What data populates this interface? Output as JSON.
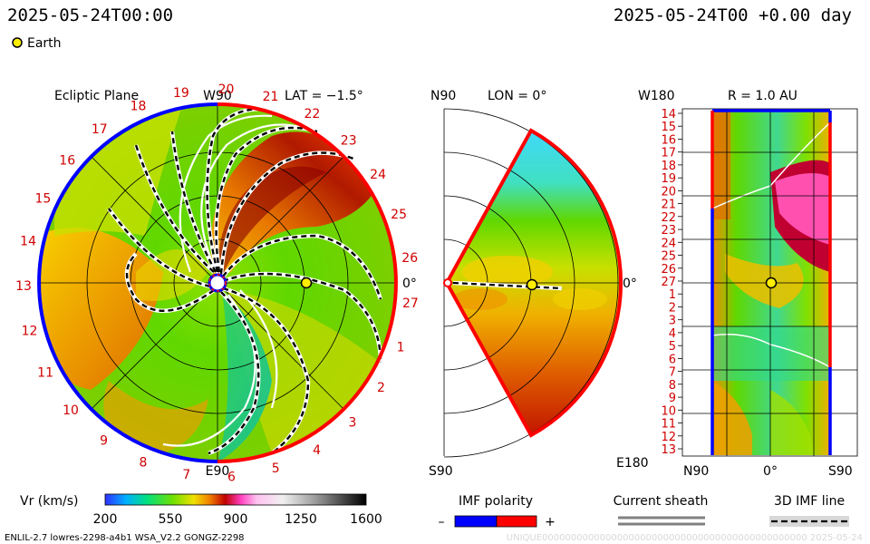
{
  "header": {
    "left_time": "2025-05-24T00:00",
    "right_time": "2025-05-24T00 +0.00 day",
    "legend_earth": "Earth"
  },
  "panels": {
    "ecliptic": {
      "title": "Ecliptic Plane",
      "lat": "LAT = −1.5°",
      "top_label": "W90",
      "bottom_label": "E90",
      "right_label": "0°",
      "rotation_labels": [
        "19",
        "20",
        "21",
        "22",
        "23",
        "24",
        "25",
        "26",
        "27",
        "1",
        "2",
        "3",
        "4",
        "5",
        "6",
        "7",
        "8",
        "9",
        "10",
        "11",
        "12",
        "13",
        "14",
        "15",
        "16",
        "17",
        "18"
      ]
    },
    "meridional": {
      "title": "LON = 0°",
      "top_label": "N90",
      "bottom_label": "S90",
      "right_label": "0°"
    },
    "radial": {
      "title": "R = 1.0 AU",
      "top_label": "W180",
      "bottom_label": "E180",
      "x_left": "N90",
      "x_mid": "0°",
      "x_right": "S90",
      "rows": [
        "14",
        "15",
        "16",
        "17",
        "18",
        "19",
        "20",
        "21",
        "22",
        "23",
        "24",
        "25",
        "26",
        "27",
        "1",
        "2",
        "3",
        "4",
        "5",
        "6",
        "7",
        "8",
        "9",
        "10",
        "11",
        "12",
        "13"
      ]
    }
  },
  "colorbar": {
    "label": "Vr (km/s)",
    "ticks": [
      "200",
      "550",
      "900",
      "1250",
      "1600"
    ]
  },
  "legends": {
    "imf_polarity": "IMF polarity",
    "minus": "–",
    "plus": "+",
    "current_sheath": "Current sheath",
    "imf_line": "3D IMF line",
    "minus_color": "#0000ff",
    "plus_color": "#ff0000"
  },
  "footer": {
    "left": "ENLIL-2.7 lowres-2298-a4b1 WSA_V2.2 GONGZ-2298",
    "right": "UNIQUE0000000000000000000000000000000000000000000000  2025-05-24"
  },
  "chart_data": {
    "type": "heatmap",
    "quantity": "Vr (km/s)",
    "color_range": [
      200,
      1600
    ],
    "color_ticks": [
      200,
      550,
      900,
      1250,
      1600
    ],
    "earth": {
      "lon_deg": 0,
      "lat_deg": -1.5,
      "r_au": 1.0
    },
    "date": "2025-05-24T00:00",
    "offset_days": 0.0
  }
}
